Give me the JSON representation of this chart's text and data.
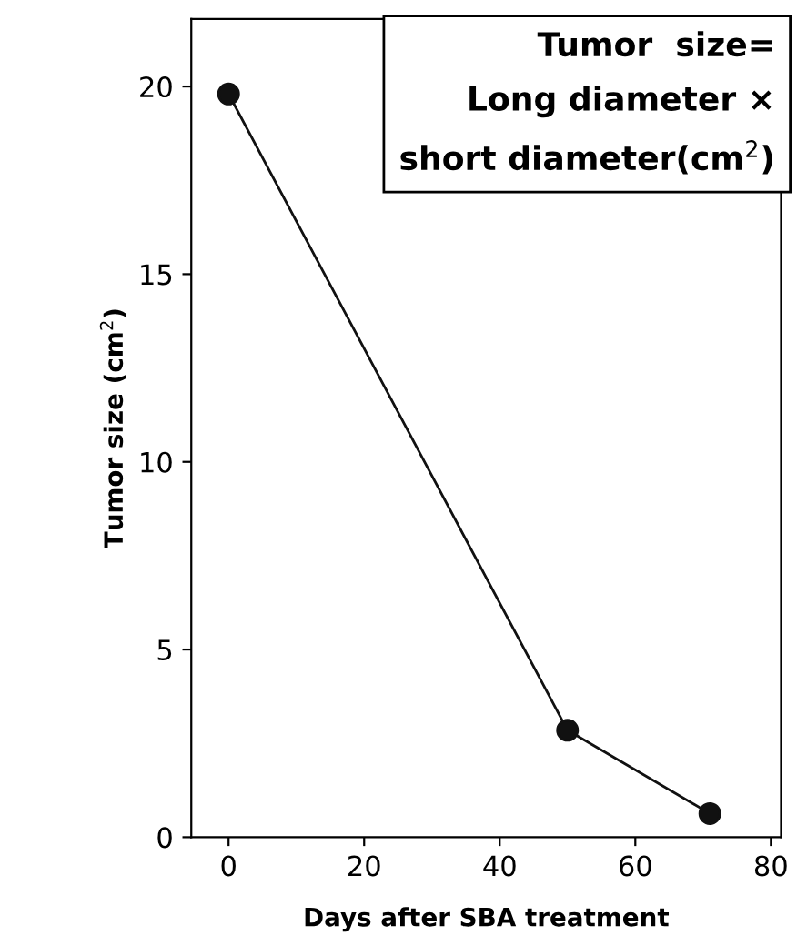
{
  "chart_data": {
    "type": "line",
    "xlabel": "Days after SBA treatment",
    "ylabel": "Tumor size (cm$^{2}$)",
    "x": [
      0,
      50,
      71
    ],
    "series": [
      {
        "color": "#111111",
        "values": [
          19.8,
          2.85,
          0.63
        ]
      }
    ],
    "xlim": [
      -5.5,
      81.5
    ],
    "ylim": [
      0,
      21.8
    ],
    "xticks": [
      0,
      20,
      40,
      60,
      80
    ],
    "yticks": [
      0,
      5,
      10,
      15,
      20
    ],
    "marker": "circle",
    "line_style": "solid",
    "grid": false,
    "annotations": [
      "Tumor  size=\nLong diameter ×\nshort diameter(cm$^{2}$)"
    ]
  }
}
